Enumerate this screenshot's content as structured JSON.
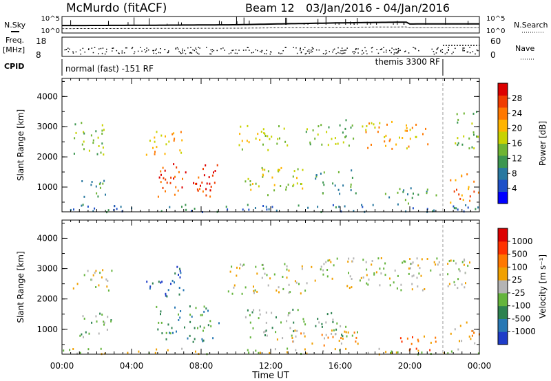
{
  "header": {
    "station": "McMurdo (fitACF)",
    "beam": "Beam 12",
    "date_range": "03/Jan/2016 - 04/Jan/2016"
  },
  "strips": {
    "nsky_label": "N.Sky",
    "nsearch_label": "N.Search",
    "noise_ticks": [
      "10^5",
      "10^0"
    ],
    "freq_label_1": "Freq.",
    "freq_label_2": "[MHz]",
    "freq_ticks": [
      "18",
      "8"
    ],
    "nave_label": "Nave",
    "nave_ticks": [
      "60",
      "0"
    ],
    "cpid_label": "CPID",
    "cpid_left": "normal (fast) -151 RF",
    "cpid_right": "themis 3300 RF"
  },
  "colors": {
    "power_scale": [
      "#0000ff",
      "#1e50c8",
      "#2878a0",
      "#3c9650",
      "#6eb432",
      "#c8d200",
      "#ffb400",
      "#ff7800",
      "#f03c00",
      "#dc0000"
    ],
    "velocity_scale": [
      "#1e3cc8",
      "#2878b4",
      "#2d8250",
      "#64b43c",
      "#b4b4b4",
      "#f0a000",
      "#ff7800",
      "#ff3200",
      "#dc0000"
    ],
    "ground_scatter": "#b4b4b4"
  },
  "chart_data": {
    "type": "heatmap",
    "x_ticks": [
      "00:00",
      "04:00",
      "08:00",
      "12:00",
      "16:00",
      "20:00",
      "00:00"
    ],
    "xlabel": "Time UT",
    "xlim_hours": [
      0,
      24
    ],
    "panels": [
      {
        "id": "power",
        "ylabel": "Slant Range [km]",
        "ylim": [
          180,
          4600
        ],
        "y_ticks": [
          1000,
          2000,
          3000,
          4000
        ],
        "colorbar_label": "Power [dB]",
        "colorbar_ticks": [
          "28",
          "24",
          "20",
          "16",
          "12",
          "8",
          "4"
        ],
        "clusters": [
          {
            "t0": 0.5,
            "t1": 2.5,
            "r0": 2050,
            "r1": 3200,
            "level": 4
          },
          {
            "t0": 4.8,
            "t1": 7.0,
            "r0": 2100,
            "r1": 3000,
            "level": 6
          },
          {
            "t0": 1.0,
            "t1": 3.0,
            "r0": 700,
            "r1": 1300,
            "level": 3
          },
          {
            "t0": 5.5,
            "t1": 9.0,
            "r0": 700,
            "r1": 1800,
            "level": 8
          },
          {
            "t0": 7.5,
            "t1": 8.8,
            "r0": 800,
            "r1": 1400,
            "level": 9
          },
          {
            "t0": 10.0,
            "t1": 13.0,
            "r0": 2250,
            "r1": 3100,
            "level": 5
          },
          {
            "t0": 10.5,
            "t1": 14.0,
            "r0": 700,
            "r1": 1700,
            "level": 5
          },
          {
            "t0": 14.0,
            "t1": 16.8,
            "r0": 2400,
            "r1": 3300,
            "level": 4
          },
          {
            "t0": 14.5,
            "t1": 17.0,
            "r0": 800,
            "r1": 1600,
            "level": 3
          },
          {
            "t0": 17.0,
            "t1": 21.0,
            "r0": 2300,
            "r1": 3200,
            "level": 6
          },
          {
            "t0": 18.5,
            "t1": 21.5,
            "r0": 450,
            "r1": 1000,
            "level": 3
          },
          {
            "t0": 22.3,
            "t1": 24.0,
            "r0": 500,
            "r1": 1500,
            "level": 7
          },
          {
            "t0": 22.5,
            "t1": 24.0,
            "r0": 2300,
            "r1": 3600,
            "level": 4
          },
          {
            "t0": 0.0,
            "t1": 24.0,
            "r0": 200,
            "r1": 450,
            "level": 2
          }
        ]
      },
      {
        "id": "velocity",
        "ylabel": "Slant Range [km]",
        "ylim": [
          180,
          4600
        ],
        "y_ticks": [
          1000,
          2000,
          3000,
          4000
        ],
        "colorbar_label": "Velocity [m s⁻¹]",
        "colorbar_ticks": [
          "1000",
          "500",
          "100",
          "25",
          "-25",
          "-100",
          "-500",
          "-1000"
        ],
        "clusters": [
          {
            "t0": 0.5,
            "t1": 3.0,
            "r0": 2300,
            "r1": 3000,
            "level": 4
          },
          {
            "t0": 4.8,
            "t1": 7.0,
            "r0": 2100,
            "r1": 3100,
            "level": 1
          },
          {
            "t0": 1.0,
            "t1": 3.0,
            "r0": 700,
            "r1": 1600,
            "level": 3
          },
          {
            "t0": 5.3,
            "t1": 9.0,
            "r0": 600,
            "r1": 1800,
            "level": 2
          },
          {
            "t0": 9.5,
            "t1": 14.0,
            "r0": 2200,
            "r1": 3200,
            "level": 4
          },
          {
            "t0": 10.5,
            "t1": 14.0,
            "r0": 700,
            "r1": 1700,
            "level": 3
          },
          {
            "t0": 12.0,
            "t1": 17.0,
            "r0": 500,
            "r1": 1000,
            "level": 5
          },
          {
            "t0": 14.0,
            "t1": 23.5,
            "r0": 2300,
            "r1": 3400,
            "level": 4
          },
          {
            "t0": 14.5,
            "t1": 17.0,
            "r0": 800,
            "r1": 1600,
            "level": 3
          },
          {
            "t0": 19.0,
            "t1": 21.8,
            "r0": 300,
            "r1": 800,
            "level": 6
          },
          {
            "t0": 22.3,
            "t1": 24.0,
            "r0": 500,
            "r1": 1300,
            "level": 5
          },
          {
            "t0": 0.0,
            "t1": 24.0,
            "r0": 200,
            "r1": 400,
            "level": 4
          }
        ]
      }
    ],
    "cpid_change_hour": 21.9
  }
}
